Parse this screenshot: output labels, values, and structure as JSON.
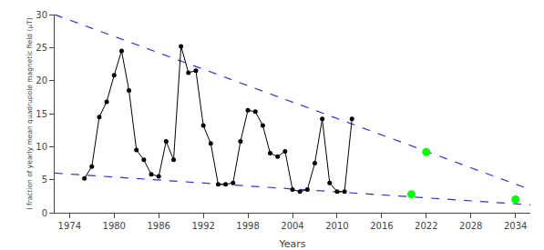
{
  "chart_data": {
    "type": "line",
    "xlabel": "Years",
    "ylabel": "I fraction of yearly mean quadrupole magnetic field (μT)",
    "series": [
      {
        "x": [
          1972,
          2036
        ],
        "values": [
          30.0,
          3.5
        ],
        "color": "#3333CC",
        "line_style": "dashed"
      },
      {
        "x": [
          1972,
          2036
        ],
        "values": [
          6.0,
          1.2
        ],
        "color": "#3333CC",
        "line_style": "dashed"
      },
      {
        "x": [
          1976,
          1977,
          1978,
          1979,
          1980,
          1981,
          1982,
          1983,
          1984,
          1985,
          1986,
          1987,
          1988,
          1989,
          1990,
          1991,
          1992,
          1993,
          1994,
          1995,
          1996,
          1997,
          1998,
          1999,
          2000,
          2001,
          2002,
          2003,
          2004,
          2005,
          2006,
          2007,
          2008,
          2009,
          2010,
          2011,
          2012
        ],
        "values": [
          5.2,
          7.0,
          14.5,
          16.8,
          20.8,
          24.5,
          18.5,
          9.5,
          8.0,
          5.8,
          5.5,
          10.8,
          8.0,
          25.2,
          21.2,
          21.5,
          13.2,
          10.5,
          4.3,
          4.3,
          4.5,
          10.8,
          15.5,
          15.3,
          13.2,
          9.0,
          8.5,
          9.3,
          3.5,
          3.2,
          3.5,
          7.5,
          14.2,
          4.5,
          3.2,
          3.2,
          14.2
        ],
        "color": "black",
        "line_style": "solid",
        "marker": "circle"
      },
      {
        "type": "scatter",
        "x": [
          2020,
          2022,
          2034
        ],
        "values": [
          2.8,
          9.2,
          2.0
        ],
        "color": "lime",
        "marker": "circle"
      }
    ],
    "xlim": [
      1972,
      2036
    ],
    "ylim": [
      0,
      30
    ],
    "xticks": [
      1974,
      1980,
      1986,
      1992,
      1998,
      2004,
      2010,
      2016,
      2022,
      2028,
      2034
    ],
    "yticks": [
      0,
      5,
      10,
      15,
      20,
      25,
      30
    ],
    "grid": false
  }
}
